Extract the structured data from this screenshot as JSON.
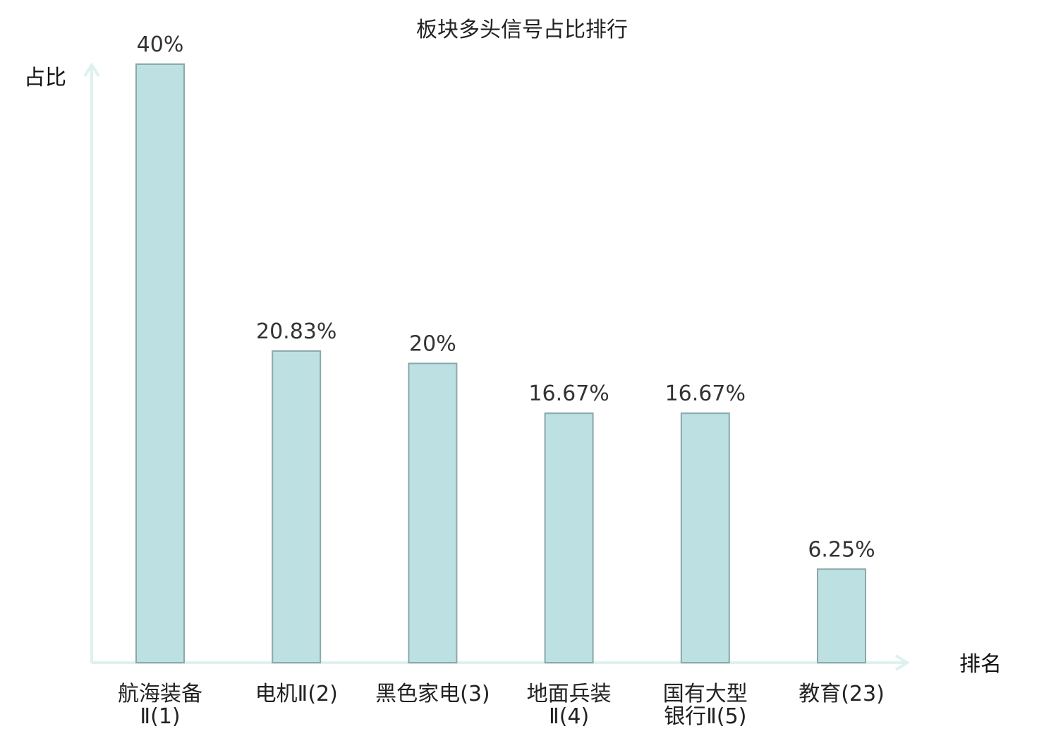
{
  "chart_data": {
    "type": "bar",
    "title": "板块多头信号占比排行",
    "ylabel": "占比",
    "xlabel": "排名",
    "ylim": [
      0,
      40
    ],
    "grid": false,
    "legend": "none",
    "categories": [
      {
        "lines": [
          "航海装备",
          "Ⅱ(1)"
        ],
        "highlight": false
      },
      {
        "lines": [
          "电机Ⅱ(2)"
        ],
        "highlight": false
      },
      {
        "lines": [
          "黑色家电(3)"
        ],
        "highlight": false
      },
      {
        "lines": [
          "地面兵装",
          "Ⅱ(4)"
        ],
        "highlight": false
      },
      {
        "lines": [
          "国有大型",
          "银行Ⅱ(5)"
        ],
        "highlight": false
      },
      {
        "lines": [
          "教育(23)"
        ],
        "highlight": true
      }
    ],
    "values": [
      40,
      20.83,
      20,
      16.67,
      16.67,
      6.25
    ],
    "value_labels": [
      "40%",
      "20.83%",
      "20%",
      "16.67%",
      "16.67%",
      "6.25%"
    ],
    "colors": {
      "bar_fill": "#bde0e3",
      "bar_stroke": "#8aa8aa",
      "axis": "#dff1ef",
      "highlight_text": "#e31a1a",
      "text": "#222222",
      "value_text": "#333333"
    }
  }
}
